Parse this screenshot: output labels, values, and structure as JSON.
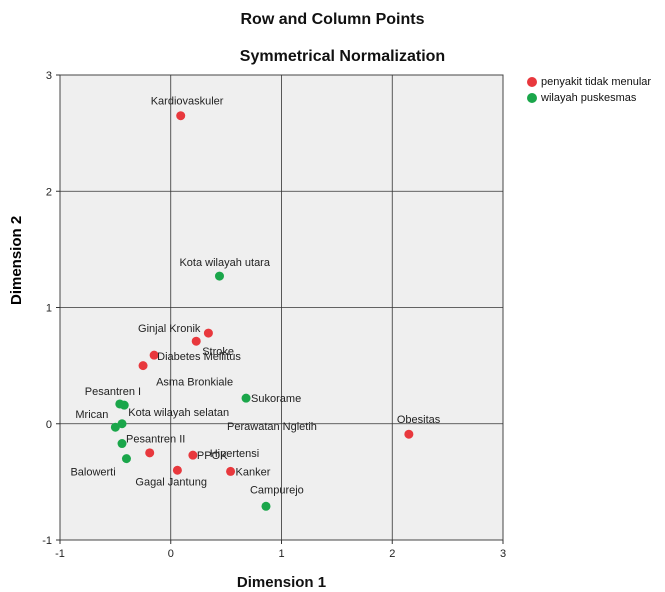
{
  "chart_data": {
    "type": "scatter",
    "title": "Row and Column Points",
    "subtitle": "Symmetrical Normalization",
    "xlabel": "Dimension 1",
    "ylabel": "Dimension 2",
    "xlim": [
      -1,
      3
    ],
    "ylim": [
      -1,
      3
    ],
    "xticks": [
      -1,
      0,
      1,
      2,
      3
    ],
    "yticks": [
      -1,
      0,
      1,
      2,
      3
    ],
    "grid": true,
    "legend_position": "top-right",
    "series": [
      {
        "name": "penyakit tidak menular",
        "color": "#e8383d",
        "points": [
          {
            "label": "Kardiovaskuler",
            "x": 0.09,
            "y": 2.65
          },
          {
            "label": "Ginjal Kronik",
            "x": 0.34,
            "y": 0.78
          },
          {
            "label": "Stroke",
            "x": 0.23,
            "y": 0.71
          },
          {
            "label": "Diabetes Mellitus",
            "x": -0.15,
            "y": 0.59
          },
          {
            "label": "Asma Bronkiale",
            "x": -0.25,
            "y": 0.5
          },
          {
            "label": "Obesitas",
            "x": 2.15,
            "y": -0.09
          },
          {
            "label": "Hipertensi",
            "x": -0.19,
            "y": -0.25
          },
          {
            "label": "PPOK",
            "x": 0.2,
            "y": -0.27
          },
          {
            "label": "Kanker",
            "x": 0.54,
            "y": -0.41
          },
          {
            "label": "Gagal Jantung",
            "x": 0.06,
            "y": -0.4
          }
        ]
      },
      {
        "name": "wilayah puskesmas",
        "color": "#1aa64a",
        "points": [
          {
            "label": "Kota wilayah utara",
            "x": 0.44,
            "y": 1.27
          },
          {
            "label": "Sukorame",
            "x": 0.68,
            "y": 0.22
          },
          {
            "label": "Pesantren I",
            "x": -0.46,
            "y": 0.17
          },
          {
            "label": "Kota wilayah selatan",
            "x": -0.42,
            "y": 0.16
          },
          {
            "label": "Mrican",
            "x": -0.5,
            "y": -0.03
          },
          {
            "label": "Perawatan Ngletih",
            "x": -0.44,
            "y": 0.0
          },
          {
            "label": "Pesantren II",
            "x": -0.44,
            "y": -0.17
          },
          {
            "label": "Balowerti",
            "x": -0.4,
            "y": -0.3
          },
          {
            "label": "Campurejo",
            "x": 0.86,
            "y": -0.71
          }
        ]
      }
    ]
  }
}
